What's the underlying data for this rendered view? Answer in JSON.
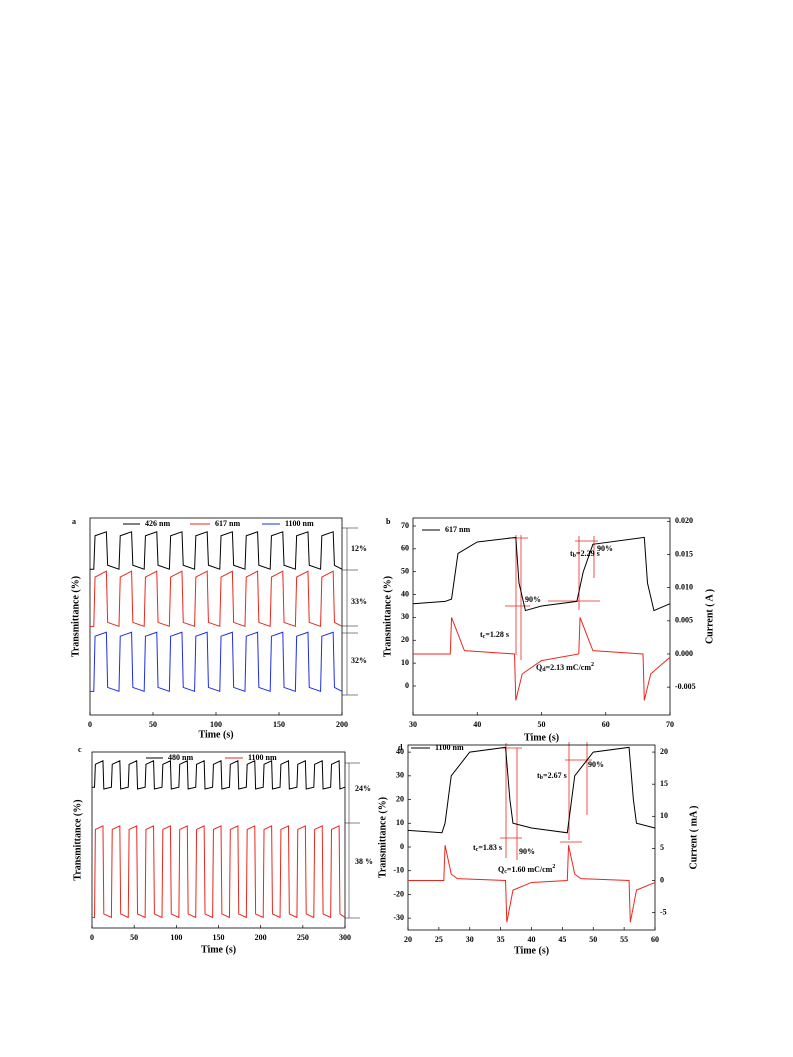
{
  "chart_data": [
    {
      "type": "line",
      "label": "a",
      "xlabel": "Time (s)",
      "ylabel": "Transmittance (%)",
      "xlim": [
        0,
        200
      ],
      "xticks": [
        0,
        50,
        100,
        150,
        200
      ],
      "ylim": [
        0,
        100
      ],
      "x": [
        0,
        3,
        4,
        13,
        14,
        23,
        24,
        33,
        34,
        43,
        44,
        53,
        54,
        63,
        64,
        73,
        74,
        83,
        84,
        93,
        94,
        103,
        104,
        113,
        114,
        123,
        124,
        133,
        134,
        143,
        144,
        153,
        154,
        163,
        164,
        173,
        174,
        183,
        184,
        193,
        194,
        200
      ],
      "series": [
        {
          "name": "426 nm",
          "color": "#000000",
          "values": [
            74,
            74,
            91,
            93,
            76,
            74,
            91,
            93,
            76,
            74,
            91,
            93,
            76,
            74,
            91,
            93,
            76,
            74,
            91,
            93,
            76,
            74,
            91,
            93,
            76,
            74,
            91,
            93,
            76,
            74,
            91,
            93,
            76,
            74,
            91,
            93,
            76,
            74,
            91,
            93,
            76,
            74
          ]
        },
        {
          "name": "617 nm",
          "color": "#e8281e",
          "values": [
            45,
            45,
            70,
            73,
            47,
            45,
            70,
            73,
            47,
            45,
            70,
            73,
            47,
            45,
            70,
            73,
            47,
            45,
            70,
            73,
            47,
            45,
            70,
            73,
            47,
            45,
            70,
            73,
            47,
            45,
            70,
            73,
            47,
            45,
            70,
            73,
            47,
            45,
            70,
            73,
            47,
            45
          ]
        },
        {
          "name": "1100 nm",
          "color": "#1f2ee0",
          "values": [
            12,
            12,
            40,
            42,
            14,
            12,
            40,
            42,
            14,
            12,
            40,
            42,
            14,
            12,
            40,
            42,
            14,
            12,
            40,
            42,
            14,
            12,
            40,
            42,
            14,
            12,
            40,
            42,
            14,
            12,
            40,
            42,
            14,
            12,
            40,
            42,
            14,
            12,
            40,
            42,
            14,
            12
          ]
        }
      ],
      "annotations": [
        "12%",
        "33%",
        "32%"
      ]
    },
    {
      "type": "line",
      "label": "b",
      "xlabel": "Time (s)",
      "ylabel": "Transmittance (%)",
      "y2label": "Current ( A )",
      "xlim": [
        30,
        70
      ],
      "xticks": [
        30,
        40,
        50,
        60,
        70
      ],
      "ylim": [
        -12.7,
        73.5
      ],
      "yticks": [
        0,
        10,
        20,
        30,
        40,
        50,
        60,
        70
      ],
      "y2lim": [
        -0.0092,
        0.0205
      ],
      "y2ticks": [
        -0.005,
        {
          "value": 0,
          "label": "0.000"
        },
        0.005,
        {
          "value": 0.01,
          "label": "0.010"
        },
        0.015,
        {
          "value": 0.02,
          "label": "0.020"
        }
      ],
      "series": [
        {
          "name": "617 nm",
          "color": "#000000",
          "x": [
            30,
            35,
            36,
            37,
            40,
            46,
            46.5,
            47.5,
            50,
            55.5,
            56.5,
            58,
            66,
            66.5,
            67.5,
            70
          ],
          "values": [
            36,
            37,
            38,
            58,
            63,
            65,
            45,
            33,
            35,
            37,
            50,
            62,
            65,
            45,
            33,
            36
          ]
        },
        {
          "color": "#e8281e",
          "axis": "y2",
          "x": [
            30,
            35.8,
            36,
            37,
            38,
            45.8,
            46,
            47,
            50,
            55.8,
            56,
            57,
            58,
            65.8,
            66,
            67,
            70
          ],
          "values": [
            0,
            0,
            0.0055,
            0.003,
            0.0005,
            0,
            -0.007,
            -0.003,
            -0.001,
            0,
            0.0055,
            0.003,
            0.0005,
            0,
            -0.007,
            -0.003,
            -0.0005
          ]
        }
      ],
      "annotations": [
        {
          "text": "t",
          "sub": "b",
          "rest": "=2.29 s"
        },
        "90%",
        {
          "text": "t",
          "sub": "c",
          "rest": "=1.28 s"
        },
        "90%",
        {
          "text": "Q",
          "sub": "d",
          "rest": "=2.13 mC/cm",
          "sup": "2"
        }
      ]
    },
    {
      "type": "line",
      "label": "c",
      "xlabel": "Time (s)",
      "ylabel": "Transmittance (%)",
      "xlim": [
        0,
        300
      ],
      "xticks": [
        0,
        50,
        100,
        150,
        200,
        250,
        300
      ],
      "ylim": [
        0,
        100
      ],
      "x": [
        0,
        3,
        4,
        13,
        14,
        23,
        24,
        33,
        34,
        43,
        44,
        53,
        54,
        63,
        64,
        73,
        74,
        83,
        84,
        93,
        94,
        103,
        104,
        113,
        114,
        123,
        124,
        133,
        134,
        143,
        144,
        153,
        154,
        163,
        164,
        173,
        174,
        183,
        184,
        193,
        194,
        203,
        204,
        213,
        214,
        223,
        224,
        233,
        234,
        243,
        244,
        253,
        254,
        263,
        264,
        273,
        274,
        283,
        284,
        293,
        294,
        300
      ],
      "series": [
        {
          "name": "480 nm",
          "color": "#000000",
          "values": [
            80,
            80,
            93,
            95,
            79,
            80,
            93,
            95,
            79,
            80,
            93,
            95,
            79,
            80,
            93,
            95,
            79,
            80,
            93,
            95,
            79,
            80,
            93,
            95,
            79,
            80,
            93,
            95,
            79,
            80,
            93,
            95,
            79,
            80,
            93,
            95,
            79,
            80,
            93,
            95,
            79,
            80,
            93,
            95,
            79,
            80,
            93,
            95,
            79,
            80,
            93,
            95,
            79,
            80,
            93,
            95,
            79,
            80,
            93,
            95,
            79,
            80
          ]
        },
        {
          "name": "1100 nm",
          "color": "#e8281e",
          "values": [
            6,
            6,
            56,
            58,
            8,
            6,
            56,
            58,
            8,
            6,
            56,
            58,
            8,
            6,
            56,
            58,
            8,
            6,
            56,
            58,
            8,
            6,
            56,
            58,
            8,
            6,
            56,
            58,
            8,
            6,
            56,
            58,
            8,
            6,
            56,
            58,
            8,
            6,
            56,
            58,
            8,
            6,
            56,
            58,
            8,
            6,
            56,
            58,
            8,
            6,
            56,
            58,
            8,
            6,
            56,
            58,
            8,
            6,
            56,
            58,
            8,
            6
          ]
        }
      ],
      "annotations": [
        "24%",
        "38 %"
      ]
    },
    {
      "type": "line",
      "label": "d",
      "xlabel": "Time (s)",
      "ylabel": "Transmittance (%)",
      "y2label": "Current ( mA )",
      "xlim": [
        20,
        60
      ],
      "xticks": [
        20,
        25,
        30,
        35,
        40,
        45,
        50,
        55,
        60
      ],
      "ylim": [
        -35,
        43
      ],
      "yticks": [
        -30,
        -20,
        -10,
        0,
        10,
        20,
        30,
        40
      ],
      "y2lim": [
        -7.7,
        21.1
      ],
      "y2ticks": [
        -5,
        0,
        5,
        10,
        15,
        20
      ],
      "series": [
        {
          "name": "1100 nm",
          "color": "#000000",
          "x": [
            20,
            25.5,
            26,
            27,
            30,
            35.8,
            36.5,
            37,
            40,
            45.8,
            46,
            47,
            50,
            55.8,
            56.5,
            57,
            60
          ],
          "values": [
            7,
            6,
            10,
            30,
            40,
            42,
            20,
            10,
            8,
            6,
            10,
            30,
            40,
            42,
            20,
            10,
            8
          ]
        },
        {
          "color": "#e8281e",
          "axis": "y2",
          "x": [
            20,
            25.8,
            26,
            27,
            28,
            35.8,
            36,
            37,
            40,
            45.8,
            46,
            47,
            48,
            55.8,
            56,
            57,
            60
          ],
          "values": [
            0,
            0,
            5.5,
            1,
            0.3,
            0,
            -6.5,
            -1.5,
            -0.3,
            0,
            5.5,
            1,
            0.3,
            0,
            -6.5,
            -1.5,
            -0.3
          ]
        }
      ],
      "annotations": [
        {
          "text": "t",
          "sub": "b",
          "rest": "=2.67 s"
        },
        "90%",
        {
          "text": "t",
          "sub": "c",
          "rest": "=1.83 s"
        },
        "90%",
        {
          "text": "Q",
          "sub": "c",
          "rest": "=1.60 mC/cm",
          "sup": "2"
        }
      ]
    }
  ]
}
